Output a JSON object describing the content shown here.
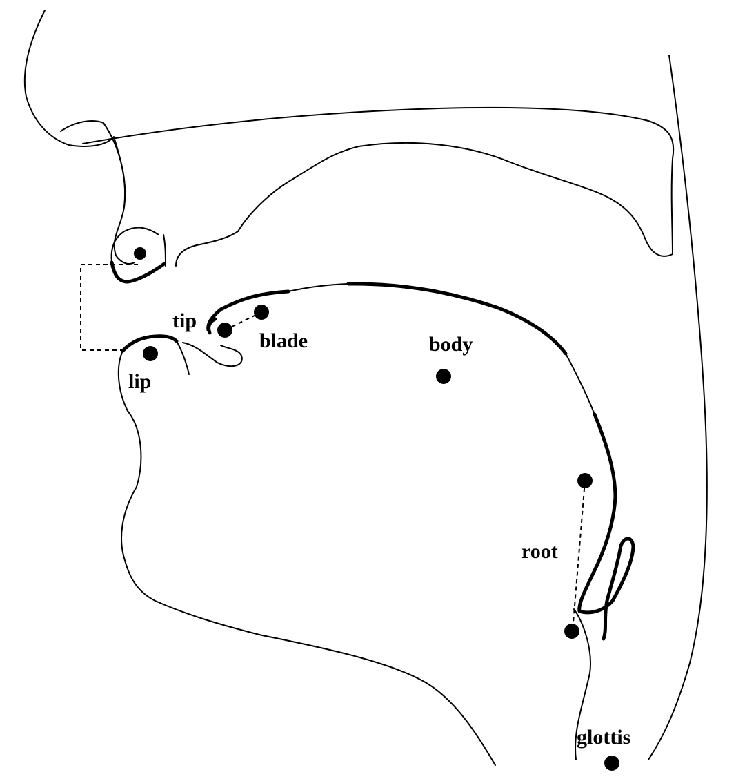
{
  "diagram": {
    "labels": {
      "tip": "tip",
      "blade": "blade",
      "body": "body",
      "lip": "lip",
      "root": "root",
      "glottis": "glottis"
    },
    "line_color": "#000000",
    "background": "#ffffff"
  }
}
